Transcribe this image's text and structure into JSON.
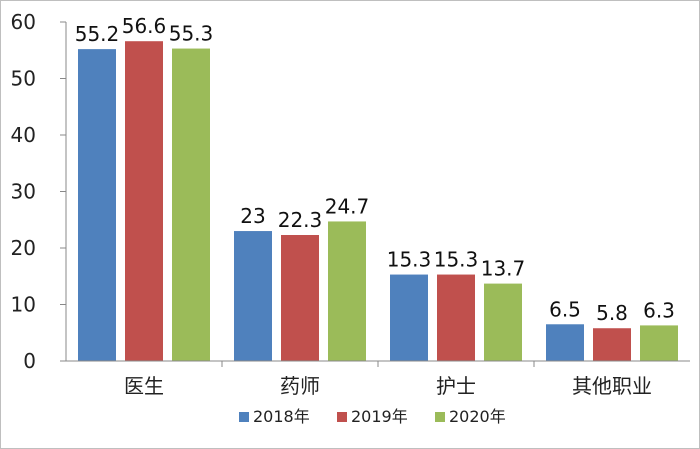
{
  "chart_data": {
    "type": "bar",
    "categories": [
      "医生",
      "药师",
      "护士",
      "其他职业"
    ],
    "series": [
      {
        "name": "2018年",
        "values": [
          55.2,
          23,
          15.3,
          6.5
        ],
        "color": "#4F81BD"
      },
      {
        "name": "2019年",
        "values": [
          56.6,
          22.3,
          15.3,
          5.8
        ],
        "color": "#C0504D"
      },
      {
        "name": "2020年",
        "values": [
          55.3,
          24.7,
          13.7,
          6.3
        ],
        "color": "#9BBB59"
      }
    ],
    "title": "",
    "xlabel": "",
    "ylabel": "",
    "ylim": [
      0,
      60
    ],
    "yticks": [
      0,
      10,
      20,
      30,
      40,
      50,
      60
    ],
    "data_labels": true,
    "grid": false,
    "legend": "bottom"
  }
}
